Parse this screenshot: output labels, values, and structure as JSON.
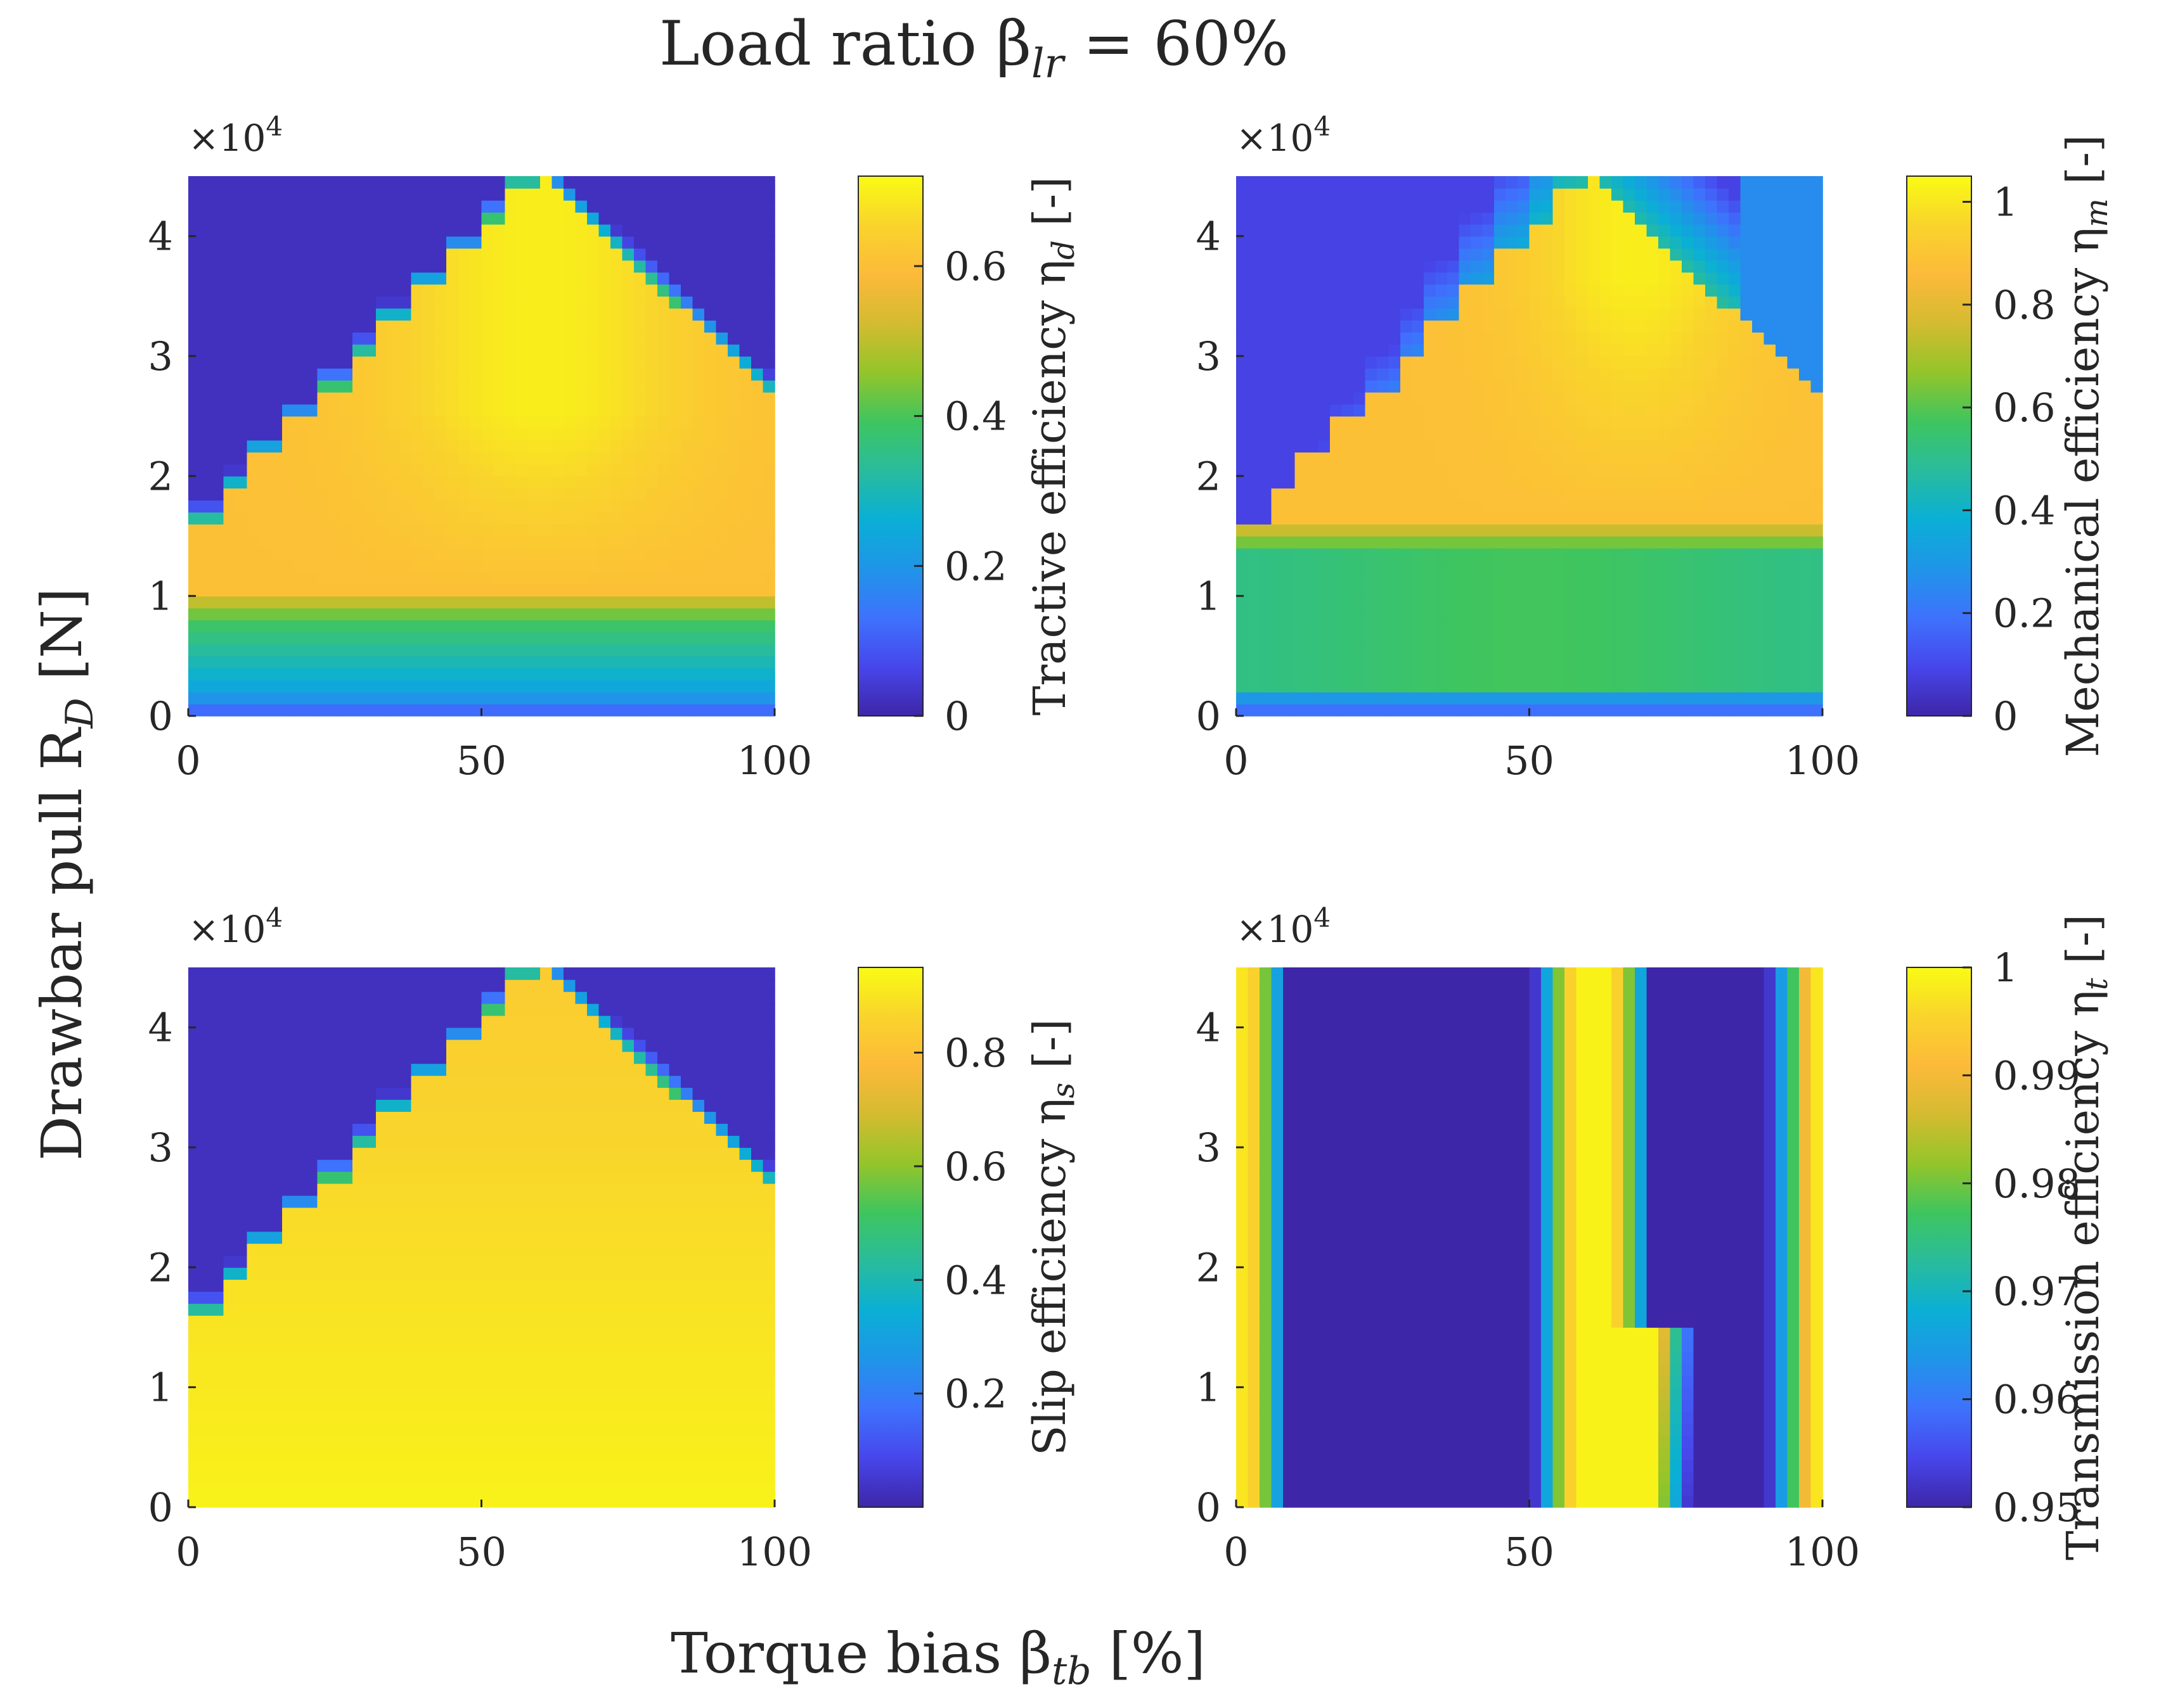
{
  "figure": {
    "title": "Load ratio β",
    "title_sub": "lr",
    "title_suffix": " = 60%",
    "shared_ylabel": "Drawbar pull R",
    "shared_ylabel_sub": "D",
    "shared_ylabel_suffix": " [N]",
    "shared_xlabel": "Torque bias β",
    "shared_xlabel_sub": "tb",
    "shared_xlabel_suffix": " [%]",
    "colormap": [
      "#3e26a8",
      "#4746eb",
      "#3e72fd",
      "#1f95e8",
      "#0aafd5",
      "#29bc9c",
      "#3ec55f",
      "#93c52a",
      "#d4bb30",
      "#fdba3a",
      "#f9d42c",
      "#f9fb14"
    ]
  },
  "chart_data": [
    {
      "type": "heatmap",
      "id": "tractive",
      "xlabel": "Torque bias β_tb [%]",
      "ylabel": "Drawbar pull R_D [N]",
      "xlim": [
        0,
        100
      ],
      "ylim": [
        0,
        45000
      ],
      "xticks": [
        "0",
        "50",
        "100"
      ],
      "yticks": [
        "0",
        "1",
        "2",
        "3",
        "4"
      ],
      "y_exponent": "×10",
      "y_exponent_power": "4",
      "colorbar": {
        "label": "Tractive efficiency η",
        "label_sub": "d",
        "label_suffix": " [-]",
        "range": [
          0,
          0.72
        ],
        "ticks": [
          "0",
          "0.2",
          "0.4",
          "0.6"
        ]
      }
    },
    {
      "type": "heatmap",
      "id": "mechanical",
      "xlabel": "Torque bias β_tb [%]",
      "ylabel": "Drawbar pull R_D [N]",
      "xlim": [
        0,
        100
      ],
      "ylim": [
        0,
        45000
      ],
      "xticks": [
        "0",
        "50",
        "100"
      ],
      "yticks": [
        "0",
        "1",
        "2",
        "3",
        "4"
      ],
      "y_exponent": "×10",
      "y_exponent_power": "4",
      "colorbar": {
        "label": "Mechanical efficiency η",
        "label_sub": "m",
        "label_suffix": " [-]",
        "range": [
          0,
          1.05
        ],
        "ticks": [
          "0",
          "0.2",
          "0.4",
          "0.6",
          "0.8",
          "1"
        ]
      }
    },
    {
      "type": "heatmap",
      "id": "slip",
      "xlabel": "Torque bias β_tb [%]",
      "ylabel": "Drawbar pull R_D [N]",
      "xlim": [
        0,
        100
      ],
      "ylim": [
        0,
        45000
      ],
      "xticks": [
        "0",
        "50",
        "100"
      ],
      "yticks": [
        "0",
        "1",
        "2",
        "3",
        "4"
      ],
      "y_exponent": "×10",
      "y_exponent_power": "4",
      "colorbar": {
        "label": "Slip efficiency η",
        "label_sub": "s",
        "label_suffix": " [-]",
        "range": [
          0,
          0.95
        ],
        "ticks": [
          "0.2",
          "0.4",
          "0.6",
          "0.8"
        ]
      }
    },
    {
      "type": "heatmap",
      "id": "transmission",
      "xlabel": "Torque bias β_tb [%]",
      "ylabel": "Drawbar pull R_D [N]",
      "xlim": [
        0,
        100
      ],
      "ylim": [
        0,
        45000
      ],
      "xticks": [
        "0",
        "50",
        "100"
      ],
      "yticks": [
        "0",
        "1",
        "2",
        "3",
        "4"
      ],
      "y_exponent": "×10",
      "y_exponent_power": "4",
      "colorbar": {
        "label": "Transmission efficiency η",
        "label_sub": "t",
        "label_suffix": " [-]",
        "range": [
          0.95,
          1.0
        ],
        "ticks": [
          "0.95",
          "0.96",
          "0.97",
          "0.98",
          "0.99",
          "1"
        ]
      }
    }
  ]
}
